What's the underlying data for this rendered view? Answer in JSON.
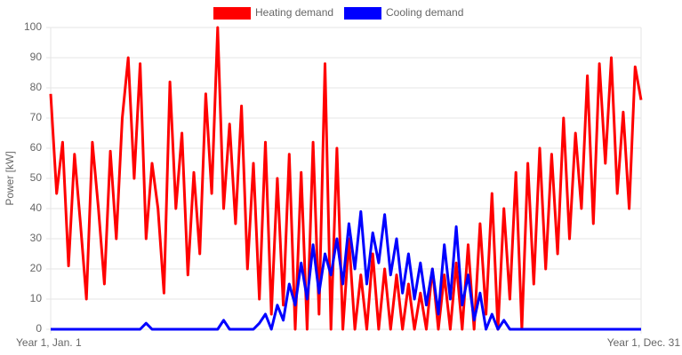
{
  "chart_data": {
    "type": "line",
    "y_label": "Power [kW]",
    "categories": [
      "Year 1, Jan. 1",
      null,
      null,
      null,
      null,
      null,
      null,
      null,
      null,
      null,
      null,
      null,
      null,
      null,
      null,
      null,
      null,
      null,
      null,
      null,
      null,
      null,
      null,
      null,
      null,
      null,
      null,
      null,
      null,
      null,
      null,
      null,
      null,
      null,
      null,
      null,
      null,
      null,
      null,
      null,
      null,
      null,
      null,
      null,
      null,
      null,
      null,
      null,
      null,
      null,
      null,
      null,
      null,
      null,
      null,
      null,
      null,
      null,
      null,
      null,
      null,
      null,
      null,
      null,
      null,
      null,
      null,
      null,
      null,
      null,
      null,
      null,
      null,
      null,
      null,
      null,
      null,
      null,
      null,
      null,
      null,
      null,
      null,
      null,
      null,
      null,
      null,
      null,
      null,
      null,
      null,
      null,
      null,
      null,
      null,
      null,
      null,
      null,
      null,
      "Year 1, Dec. 31"
    ],
    "series": [
      {
        "name": "Heating demand",
        "color": "#ff0000",
        "values": [
          78,
          45,
          62,
          21,
          58,
          35,
          10,
          62,
          40,
          15,
          59,
          30,
          70,
          90,
          50,
          88,
          30,
          55,
          40,
          12,
          82,
          40,
          65,
          18,
          52,
          25,
          78,
          45,
          100,
          40,
          68,
          35,
          74,
          20,
          55,
          10,
          62,
          5,
          50,
          8,
          58,
          0,
          52,
          0,
          62,
          5,
          88,
          0,
          60,
          0,
          30,
          0,
          18,
          0,
          25,
          0,
          20,
          0,
          18,
          0,
          15,
          0,
          12,
          0,
          20,
          0,
          18,
          0,
          22,
          0,
          28,
          0,
          35,
          5,
          45,
          0,
          40,
          10,
          52,
          0,
          55,
          15,
          60,
          20,
          58,
          25,
          70,
          30,
          65,
          40,
          84,
          35,
          88,
          55,
          90,
          45,
          72,
          40,
          87,
          76
        ]
      },
      {
        "name": "Cooling demand",
        "color": "#0000ff",
        "values": [
          0,
          0,
          0,
          0,
          0,
          0,
          0,
          0,
          0,
          0,
          0,
          0,
          0,
          0,
          0,
          0,
          2,
          0,
          0,
          0,
          0,
          0,
          0,
          0,
          0,
          0,
          0,
          0,
          0,
          3,
          0,
          0,
          0,
          0,
          0,
          2,
          5,
          0,
          8,
          3,
          15,
          8,
          22,
          10,
          28,
          12,
          25,
          18,
          30,
          15,
          35,
          20,
          39,
          15,
          32,
          22,
          38,
          18,
          30,
          12,
          25,
          10,
          22,
          8,
          20,
          5,
          28,
          10,
          34,
          8,
          18,
          3,
          12,
          0,
          5,
          0,
          3,
          0,
          0,
          0,
          0,
          0,
          0,
          0,
          0,
          0,
          0,
          0,
          0,
          0,
          0,
          0,
          0,
          0,
          0,
          0,
          0,
          0,
          0,
          0
        ]
      }
    ],
    "ylim": [
      0,
      100
    ],
    "yticks": [
      0,
      10,
      20,
      30,
      40,
      50,
      60,
      70,
      80,
      90,
      100
    ],
    "grid": true
  }
}
